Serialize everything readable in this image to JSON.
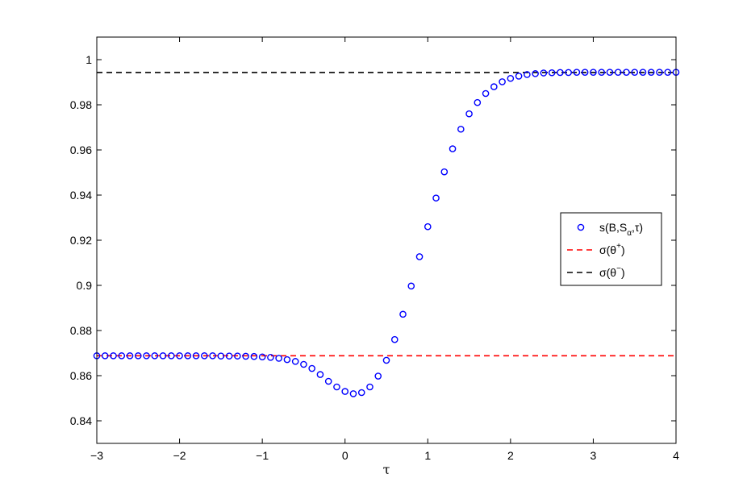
{
  "chart_data": {
    "type": "scatter",
    "title": "",
    "xlabel": "τ",
    "ylabel": "",
    "xlim": [
      -3,
      4
    ],
    "ylim": [
      0.83,
      1.01
    ],
    "xticks": [
      -3,
      -2,
      -1,
      0,
      1,
      2,
      3,
      4
    ],
    "xtick_labels": [
      "−3",
      "−2",
      "−1",
      "0",
      "1",
      "2",
      "3",
      "4"
    ],
    "yticks": [
      0.84,
      0.86,
      0.88,
      0.9,
      0.92,
      0.94,
      0.96,
      0.98,
      1.0
    ],
    "ytick_labels": [
      "0.84",
      "0.86",
      "0.88",
      "0.9",
      "0.92",
      "0.94",
      "0.96",
      "0.98",
      "1"
    ],
    "grid": false,
    "legend_position": "right",
    "series": [
      {
        "legend": {
          "main": "s(B,S",
          "sub": "α",
          "tail": ",τ)"
        },
        "kind": "scatter",
        "marker": "circle",
        "color": "#0000ff",
        "x": [
          -3.0,
          -2.9,
          -2.8,
          -2.7,
          -2.6,
          -2.5,
          -2.4,
          -2.3,
          -2.2,
          -2.1,
          -2.0,
          -1.9,
          -1.8,
          -1.7,
          -1.6,
          -1.5,
          -1.4,
          -1.3,
          -1.2,
          -1.1,
          -1.0,
          -0.9,
          -0.8,
          -0.7,
          -0.6,
          -0.5,
          -0.4,
          -0.3,
          -0.2,
          -0.1,
          0.0,
          0.1,
          0.2,
          0.3,
          0.4,
          0.5,
          0.6,
          0.7,
          0.8,
          0.9,
          1.0,
          1.1,
          1.2,
          1.3,
          1.4,
          1.5,
          1.6,
          1.7,
          1.8,
          1.9,
          2.0,
          2.1,
          2.2,
          2.3,
          2.4,
          2.5,
          2.6,
          2.7,
          2.8,
          2.9,
          3.0,
          3.1,
          3.2,
          3.3,
          3.4,
          3.5,
          3.6,
          3.7,
          3.8,
          3.9,
          4.0
        ],
        "y": [
          0.8688,
          0.8688,
          0.8688,
          0.8688,
          0.8688,
          0.8688,
          0.8688,
          0.8688,
          0.8688,
          0.8688,
          0.8688,
          0.8688,
          0.8688,
          0.8688,
          0.8688,
          0.8687,
          0.8687,
          0.8687,
          0.8686,
          0.8685,
          0.8683,
          0.8681,
          0.8677,
          0.8671,
          0.8663,
          0.865,
          0.8632,
          0.8605,
          0.8575,
          0.855,
          0.853,
          0.852,
          0.8525,
          0.855,
          0.8598,
          0.8668,
          0.876,
          0.8872,
          0.8997,
          0.9127,
          0.926,
          0.9387,
          0.9503,
          0.9605,
          0.9692,
          0.976,
          0.981,
          0.985,
          0.988,
          0.9902,
          0.9917,
          0.9927,
          0.9934,
          0.9938,
          0.9941,
          0.9942,
          0.9943,
          0.9943,
          0.9944,
          0.9944,
          0.9944,
          0.9944,
          0.9944,
          0.9944,
          0.9944,
          0.9944,
          0.9944,
          0.9944,
          0.9944,
          0.9944,
          0.9944
        ]
      },
      {
        "legend": {
          "main": "σ(θ",
          "sup": "+",
          "tail": ")"
        },
        "kind": "hline",
        "style": "dashed",
        "color": "#ff0000",
        "y": 0.8688
      },
      {
        "legend": {
          "main": "σ(θ",
          "sup": "−",
          "tail": ")"
        },
        "kind": "hline",
        "style": "dashed",
        "color": "#000000",
        "y": 0.9943
      }
    ]
  }
}
